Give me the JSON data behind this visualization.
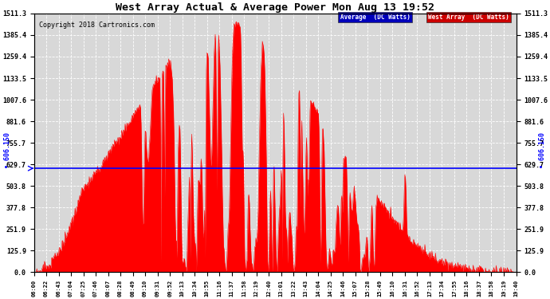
{
  "title": "West Array Actual & Average Power Mon Aug 13 19:52",
  "copyright": "Copyright 2018 Cartronics.com",
  "legend_avg": "Average  (DC Watts)",
  "legend_west": "West Array  (DC Watts)",
  "avg_value": 606.15,
  "avg_label": "606.150",
  "ylim": [
    0.0,
    1511.3
  ],
  "yticks": [
    0.0,
    125.9,
    251.9,
    377.8,
    503.8,
    629.7,
    755.7,
    881.6,
    1007.6,
    1133.5,
    1259.4,
    1385.4,
    1511.3
  ],
  "bg_color": "#ffffff",
  "plot_bg_color": "#d8d8d8",
  "grid_color": "#ffffff",
  "fill_color": "#ff0000",
  "line_color": "#ff0000",
  "avg_line_color": "#0000ff",
  "title_color": "#000000",
  "copyright_color": "#000000",
  "xtick_labels": [
    "06:00",
    "06:22",
    "06:43",
    "07:04",
    "07:25",
    "07:46",
    "08:07",
    "08:28",
    "08:49",
    "09:10",
    "09:31",
    "09:52",
    "10:13",
    "10:34",
    "10:55",
    "11:16",
    "11:37",
    "11:58",
    "12:19",
    "12:40",
    "13:01",
    "13:22",
    "13:43",
    "14:04",
    "14:25",
    "14:46",
    "15:07",
    "15:28",
    "15:49",
    "16:10",
    "16:31",
    "16:52",
    "17:13",
    "17:34",
    "17:55",
    "18:16",
    "18:37",
    "18:58",
    "19:19",
    "19:40"
  ]
}
